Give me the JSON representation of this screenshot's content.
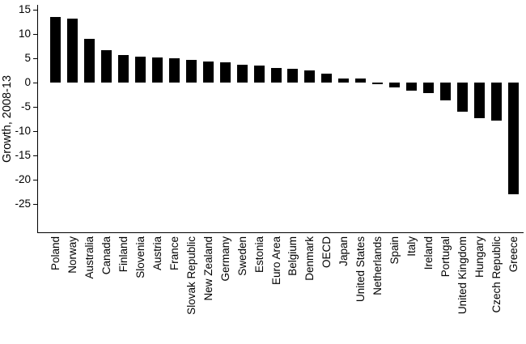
{
  "chart_data": {
    "type": "bar",
    "title": "",
    "xlabel": "",
    "ylabel": "Growth, 2008-13",
    "ylim": [
      -31,
      16
    ],
    "yticks": [
      15,
      10,
      5,
      0,
      -5,
      -10,
      -15,
      -20,
      -25
    ],
    "grid": false,
    "legend": "none",
    "bar_color": "#000000",
    "axis_color": "#000000",
    "background_color": "#ffffff",
    "categories": [
      "Poland",
      "Norway",
      "Australia",
      "Canada",
      "Finland",
      "Slovenia",
      "Austria",
      "France",
      "Slovak Republic",
      "New Zealand",
      "Germany",
      "Sweden",
      "Estonia",
      "Euro Area",
      "Belgium",
      "Denmark",
      "OECD",
      "Japan",
      "United States",
      "Netherlands",
      "Spain",
      "Italy",
      "Ireland",
      "Portugal",
      "United Kingdom",
      "Hungary",
      "Czech Republic",
      "Greece"
    ],
    "values": [
      13.5,
      13.1,
      9.0,
      6.6,
      5.6,
      5.4,
      5.2,
      5.0,
      4.6,
      4.4,
      4.2,
      3.6,
      3.5,
      3.0,
      2.8,
      2.5,
      1.9,
      0.9,
      0.8,
      -0.3,
      -1.0,
      -1.6,
      -2.2,
      -3.6,
      -6.0,
      -7.4,
      -7.8,
      -23.0
    ]
  }
}
